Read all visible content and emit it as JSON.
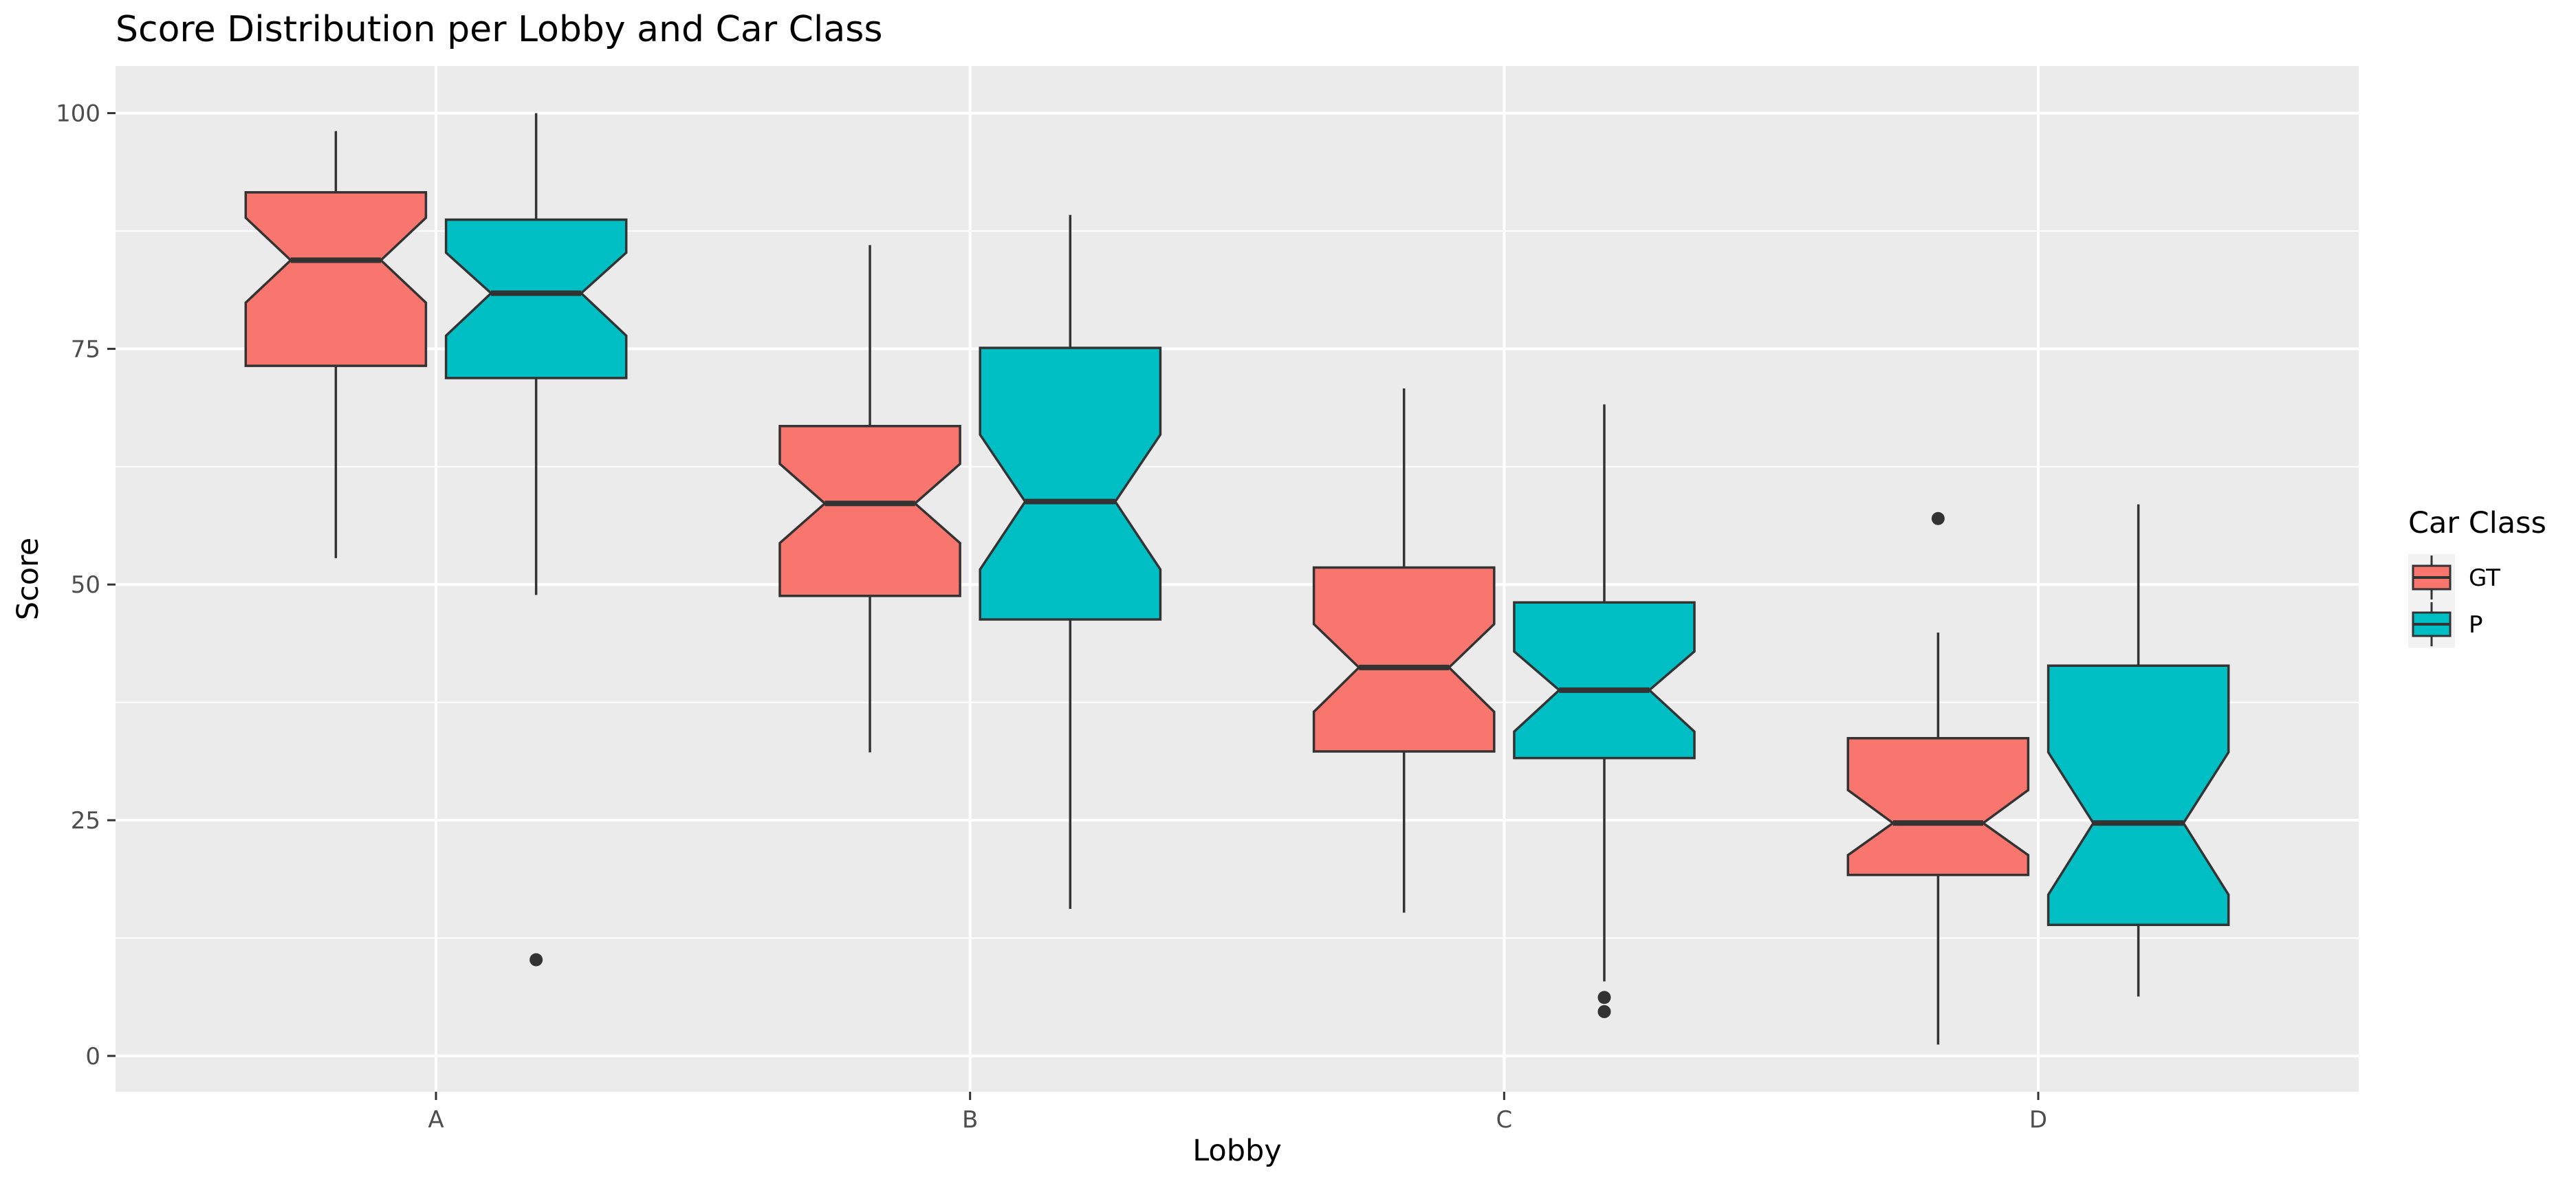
{
  "chart_data": {
    "type": "boxplot",
    "notched": true,
    "title": "Score Distribution per Lobby and Car Class",
    "xlabel": "Lobby",
    "ylabel": "Score",
    "ylim": [
      -3.8,
      105
    ],
    "y_ticks": [
      0,
      25,
      50,
      75,
      100
    ],
    "y_tick_labels": [
      "0",
      "25",
      "50",
      "75",
      "100"
    ],
    "categories": [
      "A",
      "B",
      "C",
      "D"
    ],
    "grid": true,
    "legend": {
      "title": "Car Class",
      "placement": "right"
    },
    "series": [
      {
        "name": "GT",
        "color": "#F8766D",
        "boxes": [
          {
            "category": "A",
            "whisker_low": 52.8,
            "q1": 73.2,
            "median": 84.4,
            "q3": 91.6,
            "whisker_high": 98.1,
            "notch_low": 79.9,
            "notch_high": 88.9,
            "outliers": []
          },
          {
            "category": "B",
            "whisker_low": 32.2,
            "q1": 48.8,
            "median": 58.6,
            "q3": 66.8,
            "whisker_high": 86.0,
            "notch_low": 54.4,
            "notch_high": 62.8,
            "outliers": []
          },
          {
            "category": "C",
            "whisker_low": 15.2,
            "q1": 32.3,
            "median": 41.2,
            "q3": 51.8,
            "whisker_high": 70.8,
            "notch_low": 36.5,
            "notch_high": 45.8,
            "outliers": []
          },
          {
            "category": "D",
            "whisker_low": 1.2,
            "q1": 19.2,
            "median": 24.7,
            "q3": 33.7,
            "whisker_high": 44.9,
            "notch_low": 21.3,
            "notch_high": 28.2,
            "outliers": [
              57.0
            ]
          }
        ]
      },
      {
        "name": "P",
        "color": "#00BFC4",
        "boxes": [
          {
            "category": "A",
            "whisker_low": 48.9,
            "q1": 71.9,
            "median": 80.9,
            "q3": 88.7,
            "whisker_high": 100.0,
            "notch_low": 76.4,
            "notch_high": 85.2,
            "outliers": [
              10.2
            ]
          },
          {
            "category": "B",
            "whisker_low": 15.6,
            "q1": 46.3,
            "median": 58.8,
            "q3": 75.1,
            "whisker_high": 89.2,
            "notch_low": 51.6,
            "notch_high": 65.9,
            "outliers": []
          },
          {
            "category": "C",
            "whisker_low": 7.9,
            "q1": 31.6,
            "median": 38.8,
            "q3": 48.1,
            "whisker_high": 69.1,
            "notch_low": 34.4,
            "notch_high": 42.9,
            "outliers": [
              6.2,
              4.7
            ]
          },
          {
            "category": "D",
            "whisker_low": 6.3,
            "q1": 13.9,
            "median": 24.7,
            "q3": 41.4,
            "whisker_high": 58.5,
            "notch_low": 17.1,
            "notch_high": 32.2,
            "outliers": []
          }
        ]
      }
    ]
  }
}
